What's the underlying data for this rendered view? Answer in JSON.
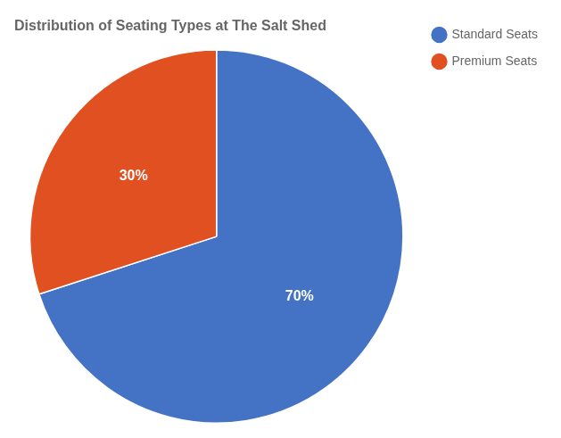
{
  "chart_data": {
    "type": "pie",
    "title": "Distribution of Seating Types at The Salt Shed",
    "categories": [
      "Standard Seats",
      "Premium Seats"
    ],
    "values": [
      70,
      30
    ],
    "value_labels": [
      "70%",
      "30%"
    ],
    "colors": [
      "#4472C4",
      "#E05020"
    ],
    "data_labels": true,
    "legend": "upper right"
  }
}
